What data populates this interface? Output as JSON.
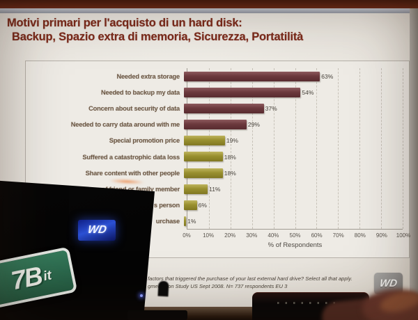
{
  "photo": {
    "monitor_logo_text": "WD",
    "monitor_logo_color": "#2b50d4",
    "sign_text": "7B",
    "sign_suffix": "it",
    "sign_color": "#2d7152"
  },
  "slide": {
    "title_line1": "Motivi primari per l'acquisto di un hard disk:",
    "title_line2": "Backup, Spazio extra di memoria, Sicurezza, Portatilità",
    "title_color": "#7c2a1b",
    "footnote_line1": "factors that triggered the purchase of your last external hard drive? Select all that apply.",
    "footnote_line2": "gmentation Study US Sept 2008.  N= 737 respondents EU 3",
    "logo_text": "WD"
  },
  "chart_data": {
    "type": "bar",
    "orientation": "horizontal",
    "title": "",
    "categories": [
      "Needed extra storage",
      "Needed to backup my data",
      "Concern about security of data",
      "Needed to carry data around with me",
      "Special promotion price",
      "Suffered a catastrophic data loss",
      "Share content with other people",
      "of friend or family member",
      "s person",
      "urchase"
    ],
    "values": [
      63,
      54,
      37,
      29,
      19,
      18,
      18,
      11,
      6,
      1
    ],
    "value_labels": [
      "63%",
      "54%",
      "37%",
      "29%",
      "19%",
      "18%",
      "18%",
      "11%",
      "6%",
      "1%"
    ],
    "xlabel": "% of Respondents",
    "ylabel": "",
    "xlim": [
      0,
      100
    ],
    "x_ticks": [
      "0%",
      "10%",
      "20%",
      "30%",
      "40%",
      "50%",
      "60%",
      "70%",
      "80%",
      "90%",
      "100%"
    ],
    "grid": "vertical-dashed",
    "legend": "none",
    "bar_color_classes": [
      "maroon",
      "maroon",
      "maroon",
      "maroon",
      "olive",
      "olive",
      "olive",
      "olive",
      "olive",
      "olive"
    ],
    "palette": {
      "maroon": "#6c393d",
      "olive": "#99902f"
    }
  }
}
